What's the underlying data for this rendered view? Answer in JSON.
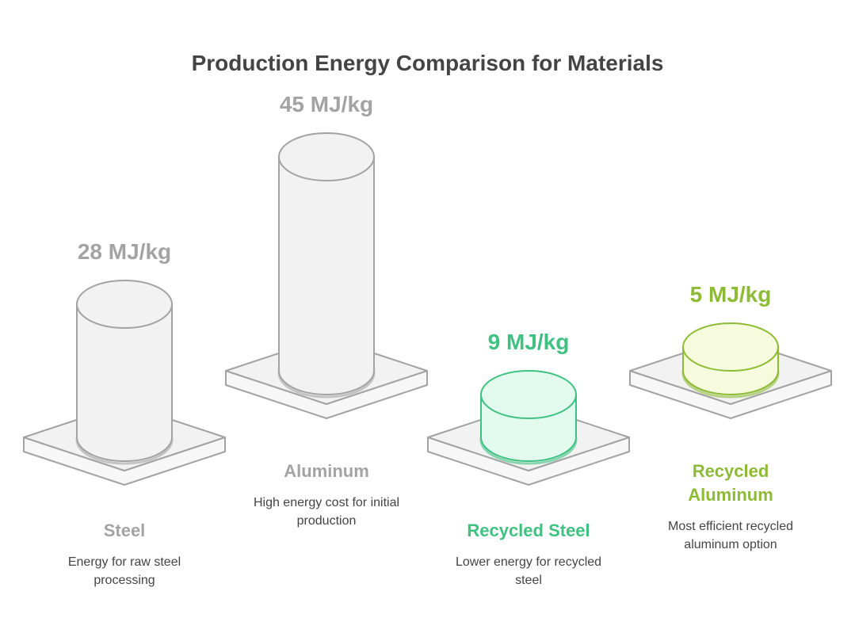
{
  "chart_data": {
    "type": "cylinder",
    "title": "Production Energy Comparison for Materials",
    "categories": [
      "Steel",
      "Aluminum",
      "Recycled Steel",
      "Recycled Aluminum"
    ],
    "values": [
      28,
      45,
      9,
      5
    ],
    "value_labels": [
      "28 MJ/kg",
      "45 MJ/kg",
      "9 MJ/kg",
      "5 MJ/kg"
    ],
    "descriptions": [
      "Energy for raw steel processing",
      "High energy cost for initial production",
      "Lower energy for recycled steel",
      "Most efficient recycled aluminum option"
    ],
    "colors": [
      "#a3a3a3",
      "#a3a3a3",
      "#3fc281",
      "#8dbb35"
    ],
    "fills": [
      "#f2f2f2",
      "#f2f2f2",
      "#e3fbef",
      "#f5fbdc"
    ]
  }
}
